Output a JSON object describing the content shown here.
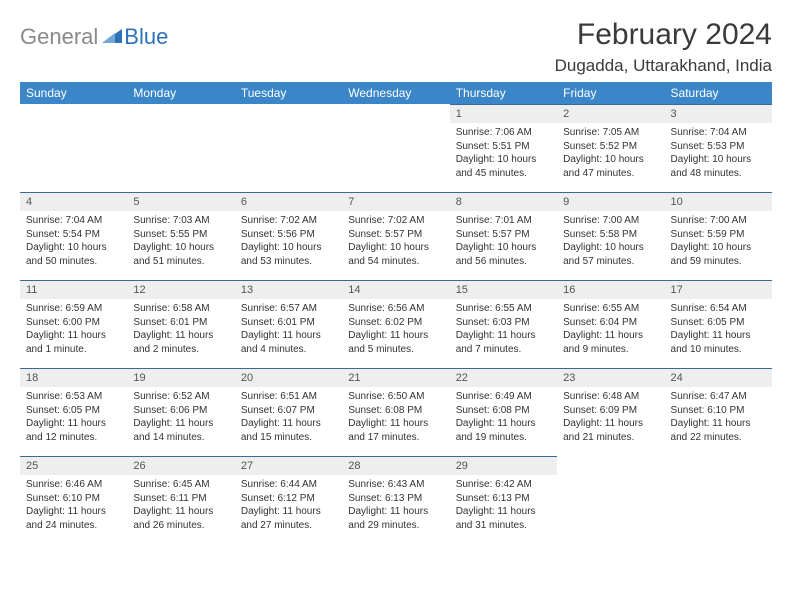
{
  "logo": {
    "text_gray": "General",
    "text_blue": "Blue"
  },
  "title": "February 2024",
  "location": "Dugadda, Uttarakhand, India",
  "colors": {
    "header_bg": "#3a86c8",
    "header_text": "#ffffff",
    "daynum_bg": "#eeeeee",
    "daynum_border": "#3a6a9a",
    "body_text": "#333333",
    "logo_gray": "#888a8c",
    "logo_blue": "#2d72b5"
  },
  "weekdays": [
    "Sunday",
    "Monday",
    "Tuesday",
    "Wednesday",
    "Thursday",
    "Friday",
    "Saturday"
  ],
  "weeks": [
    [
      null,
      null,
      null,
      null,
      {
        "d": "1",
        "sr": "Sunrise: 7:06 AM",
        "ss": "Sunset: 5:51 PM",
        "dl1": "Daylight: 10 hours",
        "dl2": "and 45 minutes."
      },
      {
        "d": "2",
        "sr": "Sunrise: 7:05 AM",
        "ss": "Sunset: 5:52 PM",
        "dl1": "Daylight: 10 hours",
        "dl2": "and 47 minutes."
      },
      {
        "d": "3",
        "sr": "Sunrise: 7:04 AM",
        "ss": "Sunset: 5:53 PM",
        "dl1": "Daylight: 10 hours",
        "dl2": "and 48 minutes."
      }
    ],
    [
      {
        "d": "4",
        "sr": "Sunrise: 7:04 AM",
        "ss": "Sunset: 5:54 PM",
        "dl1": "Daylight: 10 hours",
        "dl2": "and 50 minutes."
      },
      {
        "d": "5",
        "sr": "Sunrise: 7:03 AM",
        "ss": "Sunset: 5:55 PM",
        "dl1": "Daylight: 10 hours",
        "dl2": "and 51 minutes."
      },
      {
        "d": "6",
        "sr": "Sunrise: 7:02 AM",
        "ss": "Sunset: 5:56 PM",
        "dl1": "Daylight: 10 hours",
        "dl2": "and 53 minutes."
      },
      {
        "d": "7",
        "sr": "Sunrise: 7:02 AM",
        "ss": "Sunset: 5:57 PM",
        "dl1": "Daylight: 10 hours",
        "dl2": "and 54 minutes."
      },
      {
        "d": "8",
        "sr": "Sunrise: 7:01 AM",
        "ss": "Sunset: 5:57 PM",
        "dl1": "Daylight: 10 hours",
        "dl2": "and 56 minutes."
      },
      {
        "d": "9",
        "sr": "Sunrise: 7:00 AM",
        "ss": "Sunset: 5:58 PM",
        "dl1": "Daylight: 10 hours",
        "dl2": "and 57 minutes."
      },
      {
        "d": "10",
        "sr": "Sunrise: 7:00 AM",
        "ss": "Sunset: 5:59 PM",
        "dl1": "Daylight: 10 hours",
        "dl2": "and 59 minutes."
      }
    ],
    [
      {
        "d": "11",
        "sr": "Sunrise: 6:59 AM",
        "ss": "Sunset: 6:00 PM",
        "dl1": "Daylight: 11 hours",
        "dl2": "and 1 minute."
      },
      {
        "d": "12",
        "sr": "Sunrise: 6:58 AM",
        "ss": "Sunset: 6:01 PM",
        "dl1": "Daylight: 11 hours",
        "dl2": "and 2 minutes."
      },
      {
        "d": "13",
        "sr": "Sunrise: 6:57 AM",
        "ss": "Sunset: 6:01 PM",
        "dl1": "Daylight: 11 hours",
        "dl2": "and 4 minutes."
      },
      {
        "d": "14",
        "sr": "Sunrise: 6:56 AM",
        "ss": "Sunset: 6:02 PM",
        "dl1": "Daylight: 11 hours",
        "dl2": "and 5 minutes."
      },
      {
        "d": "15",
        "sr": "Sunrise: 6:55 AM",
        "ss": "Sunset: 6:03 PM",
        "dl1": "Daylight: 11 hours",
        "dl2": "and 7 minutes."
      },
      {
        "d": "16",
        "sr": "Sunrise: 6:55 AM",
        "ss": "Sunset: 6:04 PM",
        "dl1": "Daylight: 11 hours",
        "dl2": "and 9 minutes."
      },
      {
        "d": "17",
        "sr": "Sunrise: 6:54 AM",
        "ss": "Sunset: 6:05 PM",
        "dl1": "Daylight: 11 hours",
        "dl2": "and 10 minutes."
      }
    ],
    [
      {
        "d": "18",
        "sr": "Sunrise: 6:53 AM",
        "ss": "Sunset: 6:05 PM",
        "dl1": "Daylight: 11 hours",
        "dl2": "and 12 minutes."
      },
      {
        "d": "19",
        "sr": "Sunrise: 6:52 AM",
        "ss": "Sunset: 6:06 PM",
        "dl1": "Daylight: 11 hours",
        "dl2": "and 14 minutes."
      },
      {
        "d": "20",
        "sr": "Sunrise: 6:51 AM",
        "ss": "Sunset: 6:07 PM",
        "dl1": "Daylight: 11 hours",
        "dl2": "and 15 minutes."
      },
      {
        "d": "21",
        "sr": "Sunrise: 6:50 AM",
        "ss": "Sunset: 6:08 PM",
        "dl1": "Daylight: 11 hours",
        "dl2": "and 17 minutes."
      },
      {
        "d": "22",
        "sr": "Sunrise: 6:49 AM",
        "ss": "Sunset: 6:08 PM",
        "dl1": "Daylight: 11 hours",
        "dl2": "and 19 minutes."
      },
      {
        "d": "23",
        "sr": "Sunrise: 6:48 AM",
        "ss": "Sunset: 6:09 PM",
        "dl1": "Daylight: 11 hours",
        "dl2": "and 21 minutes."
      },
      {
        "d": "24",
        "sr": "Sunrise: 6:47 AM",
        "ss": "Sunset: 6:10 PM",
        "dl1": "Daylight: 11 hours",
        "dl2": "and 22 minutes."
      }
    ],
    [
      {
        "d": "25",
        "sr": "Sunrise: 6:46 AM",
        "ss": "Sunset: 6:10 PM",
        "dl1": "Daylight: 11 hours",
        "dl2": "and 24 minutes."
      },
      {
        "d": "26",
        "sr": "Sunrise: 6:45 AM",
        "ss": "Sunset: 6:11 PM",
        "dl1": "Daylight: 11 hours",
        "dl2": "and 26 minutes."
      },
      {
        "d": "27",
        "sr": "Sunrise: 6:44 AM",
        "ss": "Sunset: 6:12 PM",
        "dl1": "Daylight: 11 hours",
        "dl2": "and 27 minutes."
      },
      {
        "d": "28",
        "sr": "Sunrise: 6:43 AM",
        "ss": "Sunset: 6:13 PM",
        "dl1": "Daylight: 11 hours",
        "dl2": "and 29 minutes."
      },
      {
        "d": "29",
        "sr": "Sunrise: 6:42 AM",
        "ss": "Sunset: 6:13 PM",
        "dl1": "Daylight: 11 hours",
        "dl2": "and 31 minutes."
      },
      null,
      null
    ]
  ]
}
